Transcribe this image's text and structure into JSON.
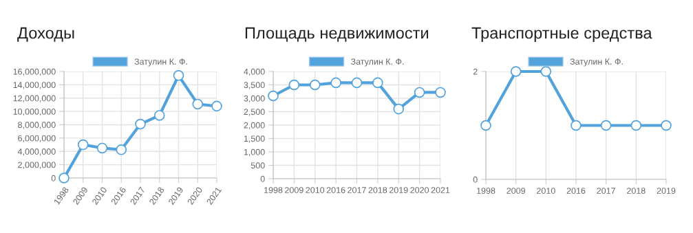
{
  "chart_data": [
    {
      "type": "line",
      "title": "Доходы",
      "categories": [
        "1998",
        "2009",
        "2010",
        "2016",
        "2017",
        "2018",
        "2019",
        "2020",
        "2021"
      ],
      "series": [
        {
          "name": "Затулин К. Ф.",
          "color": "#52a2dc",
          "values": [
            0,
            5000000,
            4500000,
            4250000,
            8100000,
            9400000,
            15400000,
            11100000,
            10800000
          ]
        }
      ],
      "ylim": [
        0,
        16000000
      ],
      "yticks": [
        {
          "value": 0,
          "label": "0"
        },
        {
          "value": 2000000,
          "label": "2,000,000"
        },
        {
          "value": 4000000,
          "label": "4,000,000"
        },
        {
          "value": 6000000,
          "label": "6,000,000"
        },
        {
          "value": 8000000,
          "label": "8,000,000"
        },
        {
          "value": 10000000,
          "label": "10,000,000"
        },
        {
          "value": 12000000,
          "label": "12,000,000"
        },
        {
          "value": 14000000,
          "label": "14,000,000"
        },
        {
          "value": 16000000,
          "label": "16,000,000"
        }
      ],
      "grid": true,
      "legend": "top",
      "marker": "circle",
      "line_style": "solid"
    },
    {
      "type": "line",
      "title": "Площадь недвижимости",
      "categories": [
        "1998",
        "2009",
        "2010",
        "2016",
        "2017",
        "2018",
        "2019",
        "2020",
        "2021"
      ],
      "series": [
        {
          "name": "Затулин К. Ф.",
          "color": "#52a2dc",
          "values": [
            3090,
            3500,
            3500,
            3580,
            3580,
            3580,
            2600,
            3220,
            3220
          ]
        }
      ],
      "ylim": [
        0,
        4000
      ],
      "yticks": [
        0,
        500,
        {
          "value": 1000,
          "label": "1,000"
        },
        {
          "value": 1500,
          "label": "1,500"
        },
        {
          "value": 2000,
          "label": "2,000"
        },
        {
          "value": 2500,
          "label": "2,500"
        },
        {
          "value": 3000,
          "label": "3,000"
        },
        {
          "value": 3500,
          "label": "3,500"
        },
        {
          "value": 4000,
          "label": "4,000"
        }
      ],
      "grid": true,
      "legend": "top",
      "marker": "circle",
      "line_style": "solid"
    },
    {
      "type": "line",
      "title": "Транспортные средства",
      "categories": [
        "1998",
        "2009",
        "2010",
        "2016",
        "2017",
        "2018",
        "2019"
      ],
      "series": [
        {
          "name": "Затулин К. Ф.",
          "color": "#52a2dc",
          "values": [
            1,
            2,
            2,
            1,
            1,
            1,
            1
          ]
        }
      ],
      "ylim": [
        0,
        2
      ],
      "yticks": [
        0,
        2
      ],
      "grid": true,
      "legend": "top",
      "marker": "circle",
      "line_style": "solid"
    }
  ]
}
